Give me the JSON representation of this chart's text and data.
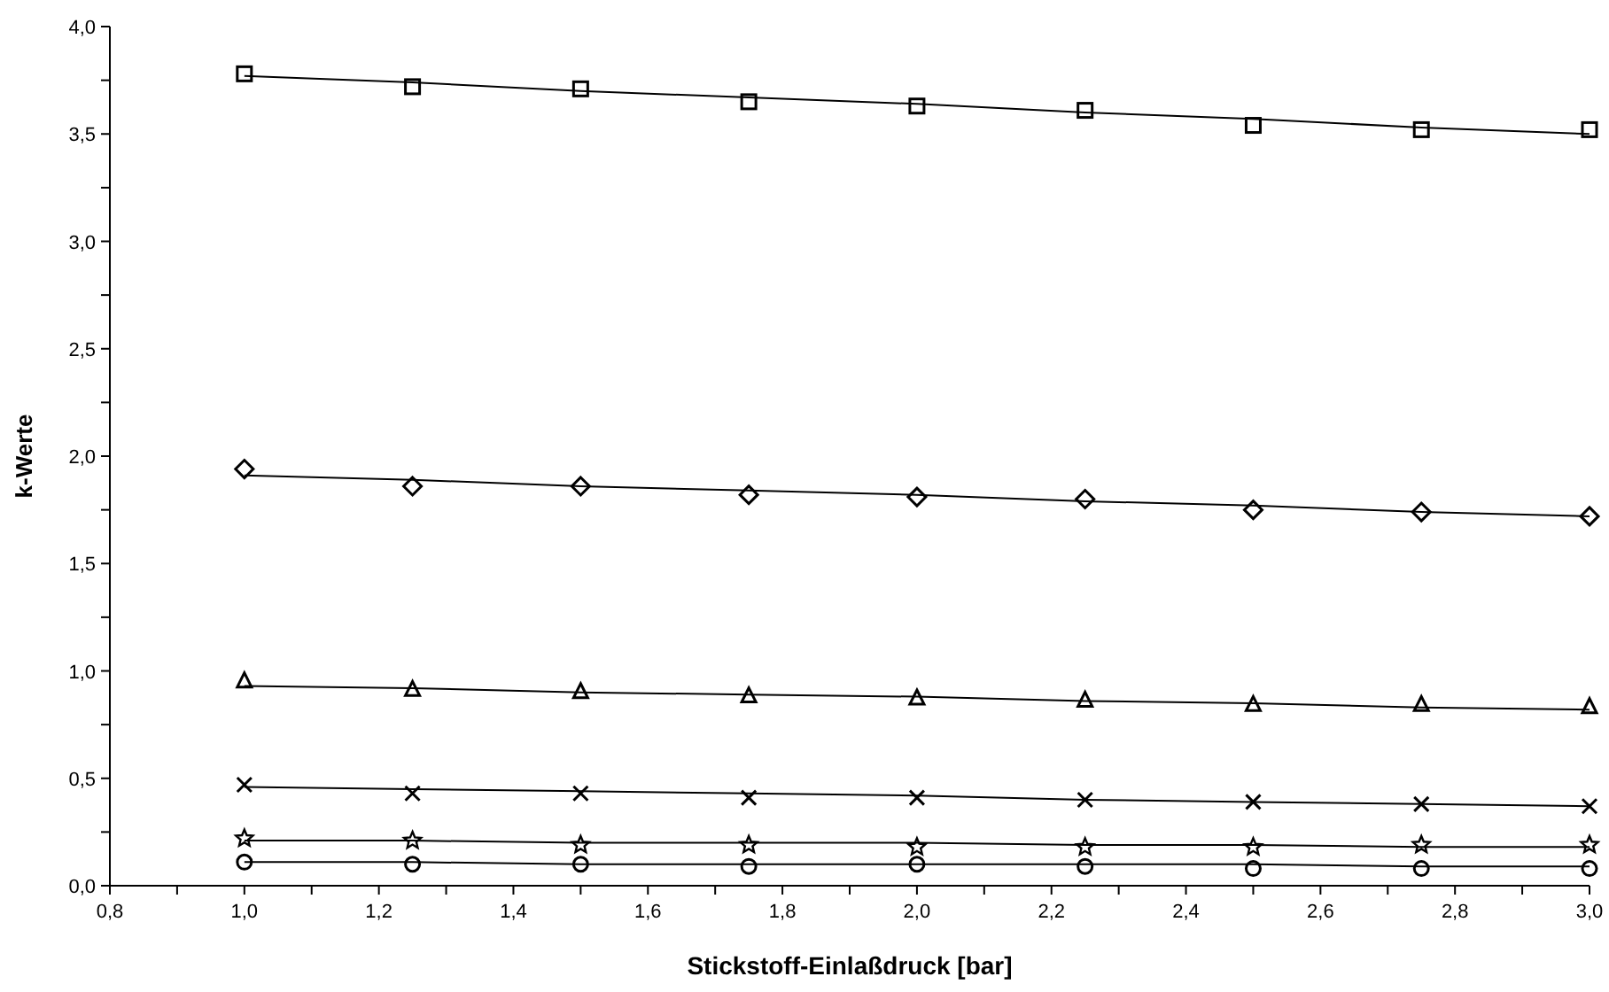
{
  "chart_data": {
    "type": "scatter",
    "xlabel": "Stickstoff-Einlaßdruck [bar]",
    "ylabel": "k-Werte",
    "x": [
      1.0,
      1.25,
      1.5,
      1.75,
      2.0,
      2.25,
      2.5,
      2.75,
      3.0
    ],
    "xlim": [
      0.8,
      3.0
    ],
    "xticks": [
      {
        "value": 0.8,
        "label": "0,8"
      },
      {
        "value": 0.9,
        "label": null
      },
      {
        "value": 1.0,
        "label": "1,0"
      },
      {
        "value": 1.1,
        "label": null
      },
      {
        "value": 1.2,
        "label": "1,2"
      },
      {
        "value": 1.3,
        "label": null
      },
      {
        "value": 1.4,
        "label": "1,4"
      },
      {
        "value": 1.5,
        "label": null
      },
      {
        "value": 1.6,
        "label": "1,6"
      },
      {
        "value": 1.7,
        "label": null
      },
      {
        "value": 1.8,
        "label": "1,8"
      },
      {
        "value": 1.9,
        "label": null
      },
      {
        "value": 2.0,
        "label": "2,0"
      },
      {
        "value": 2.1,
        "label": null
      },
      {
        "value": 2.2,
        "label": "2,2"
      },
      {
        "value": 2.3,
        "label": null
      },
      {
        "value": 2.4,
        "label": "2,4"
      },
      {
        "value": 2.5,
        "label": null
      },
      {
        "value": 2.6,
        "label": "2,6"
      },
      {
        "value": 2.7,
        "label": null
      },
      {
        "value": 2.8,
        "label": "2,8"
      },
      {
        "value": 2.9,
        "label": null
      },
      {
        "value": 3.0,
        "label": "3,0"
      }
    ],
    "ylim": [
      0,
      4
    ],
    "yticks": [
      {
        "value": 0,
        "label": "0,0"
      },
      {
        "value": 0.25,
        "label": null
      },
      {
        "value": 0.5,
        "label": "0,5"
      },
      {
        "value": 0.75,
        "label": null
      },
      {
        "value": 1.0,
        "label": "1,0"
      },
      {
        "value": 1.25,
        "label": null
      },
      {
        "value": 1.5,
        "label": "1,5"
      },
      {
        "value": 1.75,
        "label": null
      },
      {
        "value": 2.0,
        "label": "2,0"
      },
      {
        "value": 2.25,
        "label": null
      },
      {
        "value": 2.5,
        "label": "2,5"
      },
      {
        "value": 2.75,
        "label": null
      },
      {
        "value": 3.0,
        "label": "3,0"
      },
      {
        "value": 3.25,
        "label": null
      },
      {
        "value": 3.5,
        "label": "3,5"
      },
      {
        "value": 3.75,
        "label": null
      },
      {
        "value": 4.0,
        "label": "4,0"
      }
    ],
    "series": [
      {
        "marker": "square",
        "color": "#000000",
        "values": [
          3.78,
          3.72,
          3.71,
          3.65,
          3.63,
          3.61,
          3.54,
          3.52,
          3.52
        ]
      },
      {
        "marker": "diamond",
        "color": "#000000",
        "values": [
          1.94,
          1.86,
          1.86,
          1.82,
          1.81,
          1.8,
          1.75,
          1.74,
          1.72
        ]
      },
      {
        "marker": "triangle",
        "color": "#000000",
        "values": [
          0.95,
          0.91,
          0.9,
          0.88,
          0.87,
          0.86,
          0.84,
          0.84,
          0.83
        ]
      },
      {
        "marker": "cross",
        "color": "#000000",
        "values": [
          0.47,
          0.43,
          0.43,
          0.41,
          0.41,
          0.4,
          0.39,
          0.38,
          0.37
        ]
      },
      {
        "marker": "star",
        "color": "#000000",
        "values": [
          0.22,
          0.21,
          0.19,
          0.19,
          0.18,
          0.18,
          0.18,
          0.19,
          0.19
        ]
      },
      {
        "marker": "circle",
        "color": "#000000",
        "values": [
          0.11,
          0.1,
          0.1,
          0.09,
          0.1,
          0.09,
          0.08,
          0.08,
          0.08
        ]
      },
      {
        "type": "line",
        "marker": "none",
        "line_style": "solid",
        "color": "#000000",
        "values": [
          3.77,
          3.74,
          3.7,
          3.67,
          3.64,
          3.6,
          3.57,
          3.53,
          3.5
        ]
      },
      {
        "type": "line",
        "marker": "none",
        "line_style": "solid",
        "color": "#000000",
        "values": [
          1.91,
          1.89,
          1.86,
          1.84,
          1.82,
          1.79,
          1.77,
          1.74,
          1.72
        ]
      },
      {
        "type": "line",
        "marker": "none",
        "line_style": "solid",
        "color": "#000000",
        "values": [
          0.93,
          0.92,
          0.9,
          0.89,
          0.88,
          0.86,
          0.85,
          0.83,
          0.82
        ]
      },
      {
        "type": "line",
        "marker": "none",
        "line_style": "solid",
        "color": "#000000",
        "values": [
          0.46,
          0.45,
          0.44,
          0.43,
          0.42,
          0.4,
          0.39,
          0.38,
          0.37
        ]
      },
      {
        "type": "line",
        "marker": "none",
        "line_style": "solid",
        "color": "#000000",
        "values": [
          0.21,
          0.21,
          0.2,
          0.2,
          0.2,
          0.19,
          0.19,
          0.18,
          0.18
        ]
      },
      {
        "type": "line",
        "marker": "none",
        "line_style": "solid",
        "color": "#000000",
        "values": [
          0.11,
          0.11,
          0.1,
          0.1,
          0.1,
          0.1,
          0.1,
          0.09,
          0.09
        ]
      }
    ]
  }
}
